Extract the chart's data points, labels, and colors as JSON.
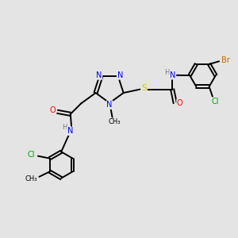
{
  "bg_color": "#e4e4e4",
  "bond_color": "#000000",
  "bond_lw": 1.4,
  "atom_colors": {
    "N": "#0000ff",
    "O": "#ff0000",
    "S": "#cccc00",
    "Cl": "#00aa00",
    "Br": "#cc6600",
    "C": "#000000",
    "H": "#777777"
  },
  "font_size": 7.0
}
